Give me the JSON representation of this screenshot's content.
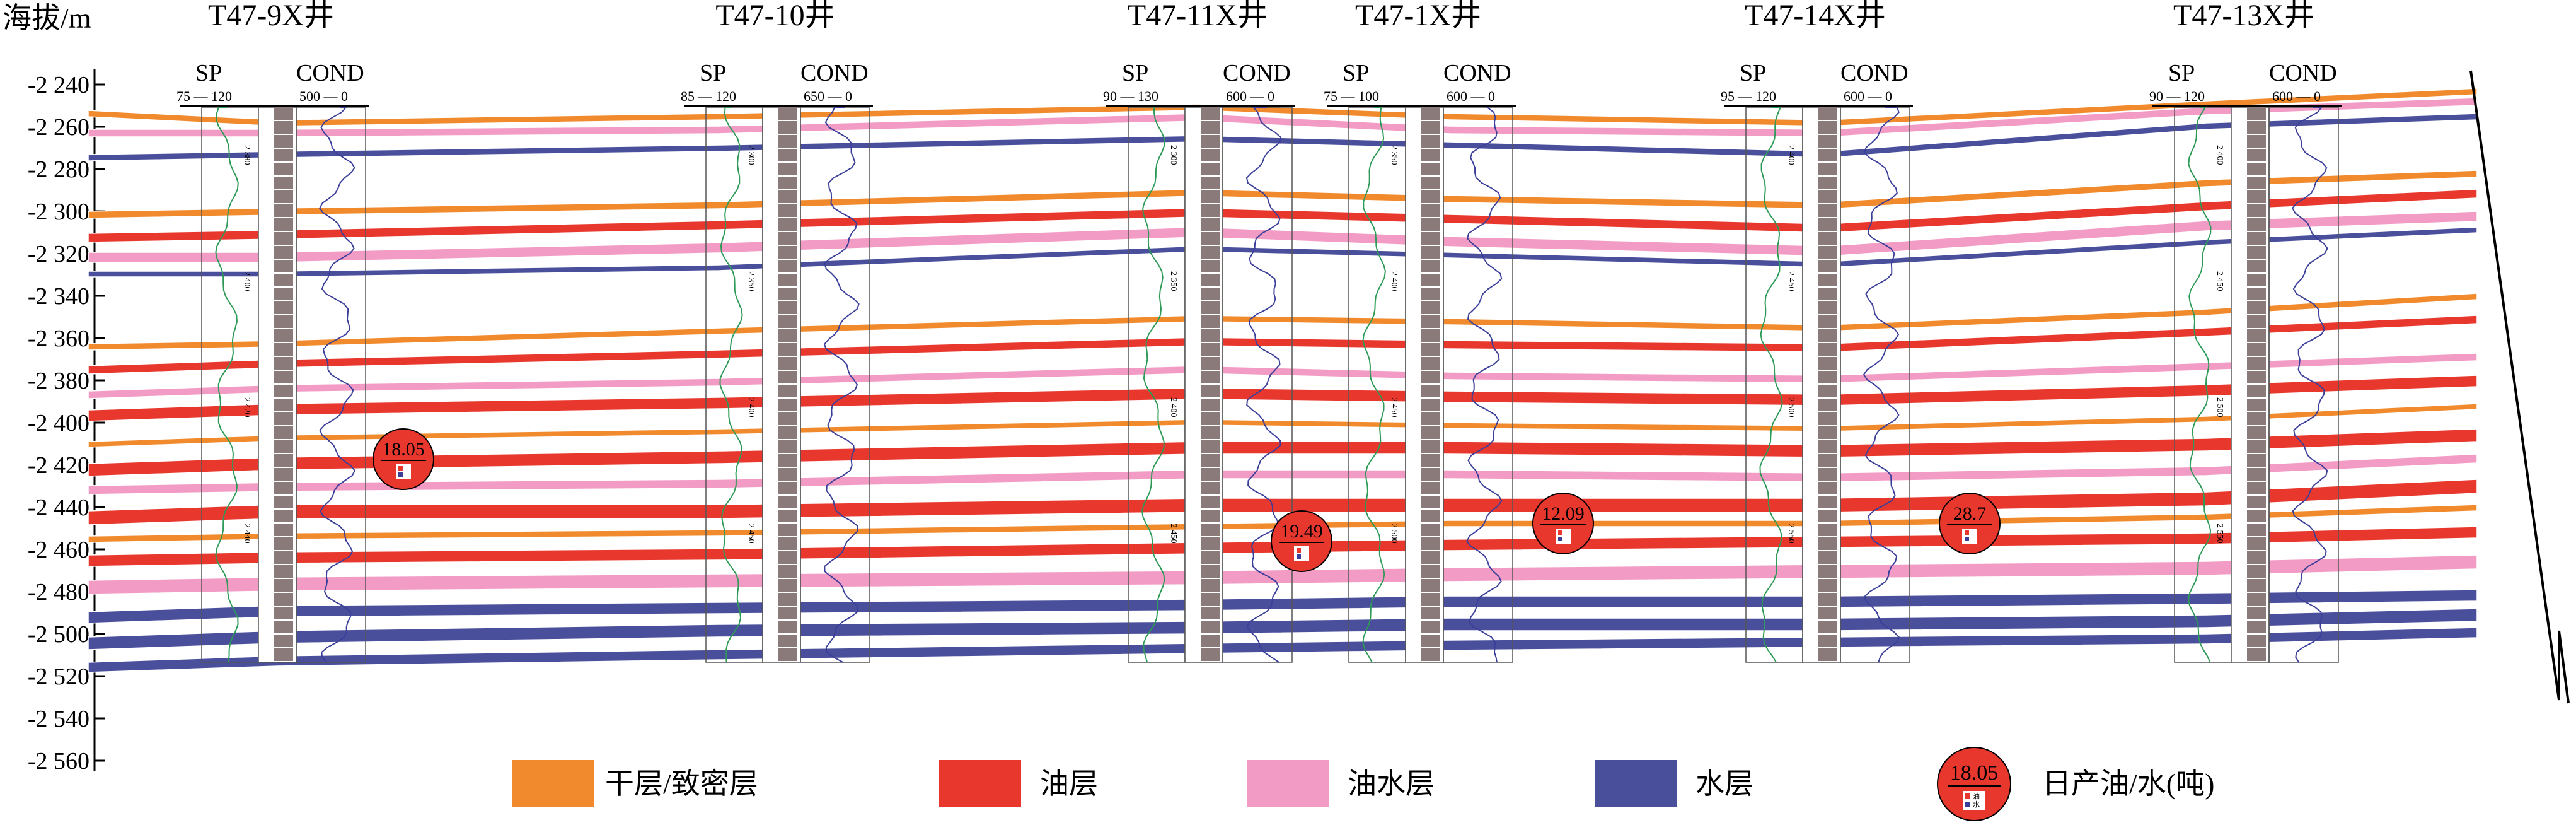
{
  "axis": {
    "title": "海拔/m",
    "ticks": [
      "-2 240",
      "-2 260",
      "-2 280",
      "-2 300",
      "-2 320",
      "-2 340",
      "-2 360",
      "-2 380",
      "-2 400",
      "-2 420",
      "-2 440",
      "-2 460",
      "-2 480",
      "-2 500",
      "-2 520",
      "-2 540",
      "-2 560"
    ]
  },
  "wells": [
    {
      "name": "T47-9X井",
      "sp_label": "SP",
      "sp_range": "75 — 120",
      "cond_label": "COND",
      "cond_range": "500 — 0",
      "depth_marks": [
        "2 380",
        "2 400",
        "2 420",
        "2 440"
      ]
    },
    {
      "name": "T47-10井",
      "sp_label": "SP",
      "sp_range": "85 — 120",
      "cond_label": "COND",
      "cond_range": "650 — 0",
      "depth_marks": [
        "2 300",
        "2 350",
        "2 400",
        "2 450"
      ]
    },
    {
      "name": "T47-11X井",
      "sp_label": "SP",
      "sp_range": "90 — 130",
      "cond_label": "COND",
      "cond_range": "600 — 0",
      "depth_marks": [
        "2 300",
        "2 350",
        "2 400",
        "2 450"
      ]
    },
    {
      "name": "T47-1X井",
      "sp_label": "SP",
      "sp_range": "75 — 100",
      "cond_label": "COND",
      "cond_range": "600 — 0",
      "depth_marks": [
        "2 350",
        "2 400",
        "2 450",
        "2 500"
      ]
    },
    {
      "name": "T47-14X井",
      "sp_label": "SP",
      "sp_range": "95 — 120",
      "cond_label": "COND",
      "cond_range": "600 — 0",
      "depth_marks": [
        "2 400",
        "2 450",
        "2 500",
        "2 550"
      ]
    },
    {
      "name": "T47-13X井",
      "sp_label": "SP",
      "sp_range": "90 — 120",
      "cond_label": "COND",
      "cond_range": "600 — 0",
      "depth_marks": [
        "2 400",
        "2 450",
        "2 500",
        "2 550"
      ]
    }
  ],
  "production": [
    {
      "value": "18.05",
      "oil_icon": "red-square-icon",
      "water_icon": "blue-square-icon"
    },
    {
      "value": "19.49",
      "oil_icon": "red-square-icon",
      "water_icon": "blue-square-icon"
    },
    {
      "value": "12.09",
      "oil_icon": "red-square-icon",
      "water_icon": "blue-square-icon"
    },
    {
      "value": "28.7",
      "oil_icon": "red-square-icon",
      "water_icon": "blue-square-icon"
    }
  ],
  "legend": {
    "dry": {
      "label": "干层/致密层",
      "color": "#f08a2c"
    },
    "oil": {
      "label": "油层",
      "color": "#e8382e"
    },
    "oilwater": {
      "label": "油水层",
      "color": "#f29bc4"
    },
    "water": {
      "label": "水层",
      "color": "#4a4f9c"
    },
    "prod": {
      "label": "日产油/水(吨)",
      "value": "18.05",
      "oil": "油",
      "water": "水"
    }
  },
  "colors": {
    "dry": "#f08a2c",
    "oil": "#e8382e",
    "oilwater": "#f29bc4",
    "water": "#4a4f9c",
    "sp_curve": "#2e9a57",
    "cond_curve": "#3b3f9a",
    "track": "#7a6a6a",
    "axis": "#000000"
  }
}
